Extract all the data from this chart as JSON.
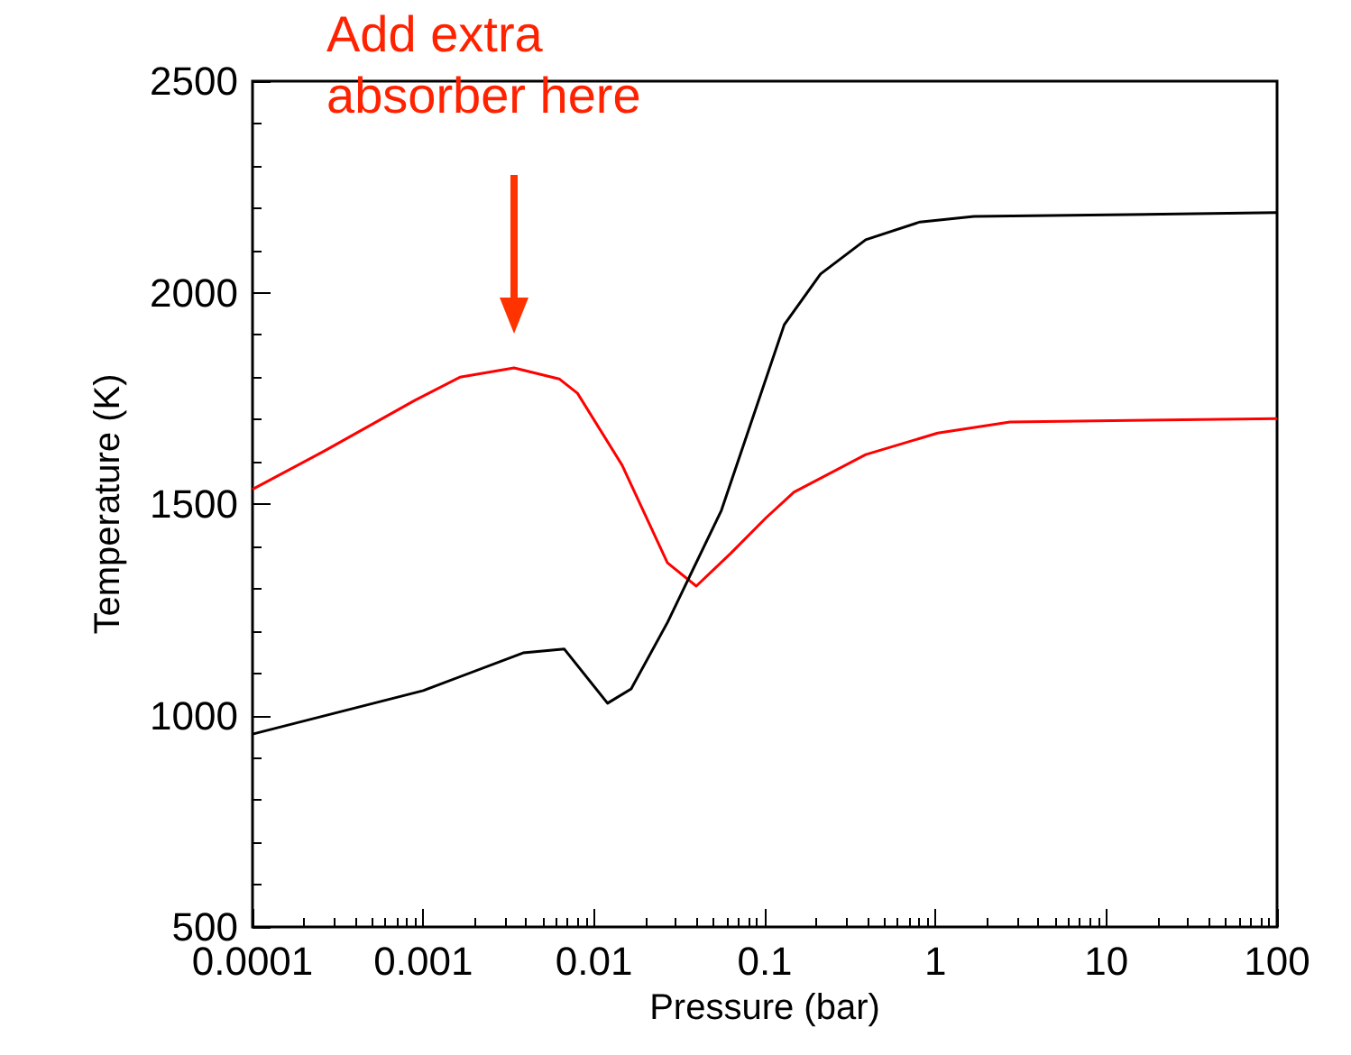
{
  "chart_data": {
    "type": "line",
    "xlabel": "Pressure (bar)",
    "ylabel": "Temperature (K)",
    "log": "x",
    "grid": false,
    "marker": "none",
    "line_style": "solid",
    "xlim": [
      0.0001,
      100
    ],
    "xticks": [
      0.0001,
      0.001,
      0.01,
      0.1,
      1,
      10,
      100
    ],
    "ylim": [
      500,
      2500
    ],
    "yticks": [
      500,
      1000,
      1500,
      2000,
      2500
    ],
    "annotations": [
      "Add extra absorber here"
    ],
    "series": [
      {
        "color": "#ff0000",
        "x": [
          0.0001,
          0.000265,
          0.00089,
          0.00164,
          0.0034,
          0.00625,
          0.008,
          0.0146,
          0.0269,
          0.0397,
          0.063,
          0.102,
          0.148,
          0.39,
          1.03,
          2.73,
          100
        ],
        "values": [
          1535,
          1626,
          1745,
          1800,
          1822,
          1796,
          1762,
          1592,
          1361,
          1306,
          1383,
          1468,
          1528,
          1617,
          1668,
          1694,
          1702
        ]
      },
      {
        "color": "#000000",
        "x": [
          0.0001,
          0.001,
          0.00384,
          0.0067,
          0.012,
          0.0165,
          0.027,
          0.0557,
          0.13,
          0.212,
          0.39,
          0.81,
          1.68,
          100
        ],
        "values": [
          956,
          1059,
          1148,
          1157,
          1029,
          1063,
          1221,
          1485,
          1924,
          2044,
          2125,
          2167,
          2180,
          2189
        ]
      }
    ]
  }
}
